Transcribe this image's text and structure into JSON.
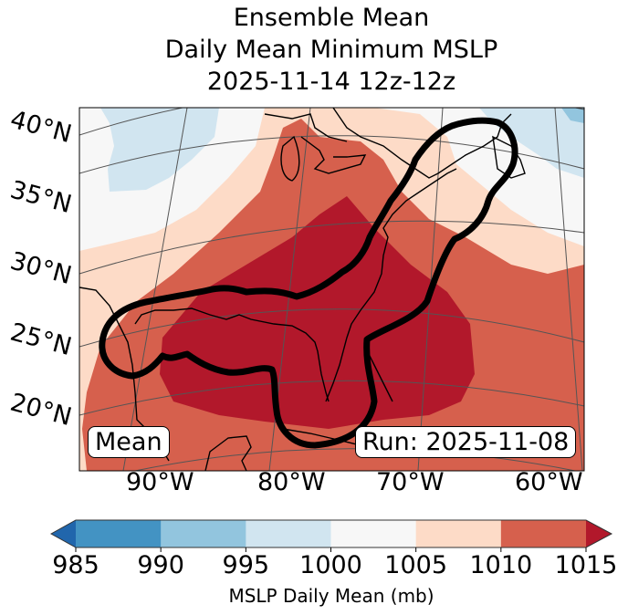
{
  "title": {
    "line1": "Ensemble Mean",
    "line2": "Daily Mean Minimum MSLP",
    "line3": "2025-11-14 12z-12z"
  },
  "map": {
    "projection": "lambert-conformal",
    "lat_labels": [
      "40°N",
      "35°N",
      "30°N",
      "25°N",
      "20°N"
    ],
    "lon_labels": [
      "90°W",
      "80°W",
      "70°W",
      "60°W"
    ],
    "annotations": {
      "left": "Mean",
      "right": "Run: 2025-11-08"
    },
    "field": "MSLP daily mean",
    "regions": [
      {
        "name": "northwest-plains",
        "band": "1000-1005",
        "color": "#f7f7f7"
      },
      {
        "name": "upper-midwest-low",
        "band": "995-1000",
        "color": "#d1e5f0"
      },
      {
        "name": "central-plains",
        "band": "1005-1010",
        "color": "#fddbc7"
      },
      {
        "name": "great-lakes-ohio-valley",
        "band": "1010-1015",
        "color": "#d6604d"
      },
      {
        "name": "southeast-gulf-atlantic",
        "band": ">1015",
        "color": "#b2182b"
      },
      {
        "name": "new-england",
        "band": "1000-1005",
        "color": "#f7f7f7"
      },
      {
        "name": "atlantic-canada",
        "band": "995-1000",
        "color": "#d1e5f0"
      },
      {
        "name": "newfoundland-corner",
        "band": "990-995",
        "color": "#92c5de"
      }
    ],
    "contour": {
      "description": "Thick black outline enclosing the Gulf Coast, Florida, and the US East Coast up to Nova Scotia",
      "color": "#000000"
    }
  },
  "colorbar": {
    "label": "MSLP Daily Mean (mb)",
    "ticks": [
      "985",
      "990",
      "995",
      "1000",
      "1005",
      "1010",
      "1015"
    ],
    "extend": "both",
    "bins": [
      {
        "range": "<985",
        "color": "#2166ac"
      },
      {
        "range": "985-990",
        "color": "#4393c3"
      },
      {
        "range": "990-995",
        "color": "#92c5de"
      },
      {
        "range": "995-1000",
        "color": "#d1e5f0"
      },
      {
        "range": "1000-1005",
        "color": "#f7f7f7"
      },
      {
        "range": "1005-1010",
        "color": "#fddbc7"
      },
      {
        "range": "1010-1015",
        "color": "#d6604d"
      },
      {
        "range": ">1015",
        "color": "#b2182b"
      }
    ]
  }
}
